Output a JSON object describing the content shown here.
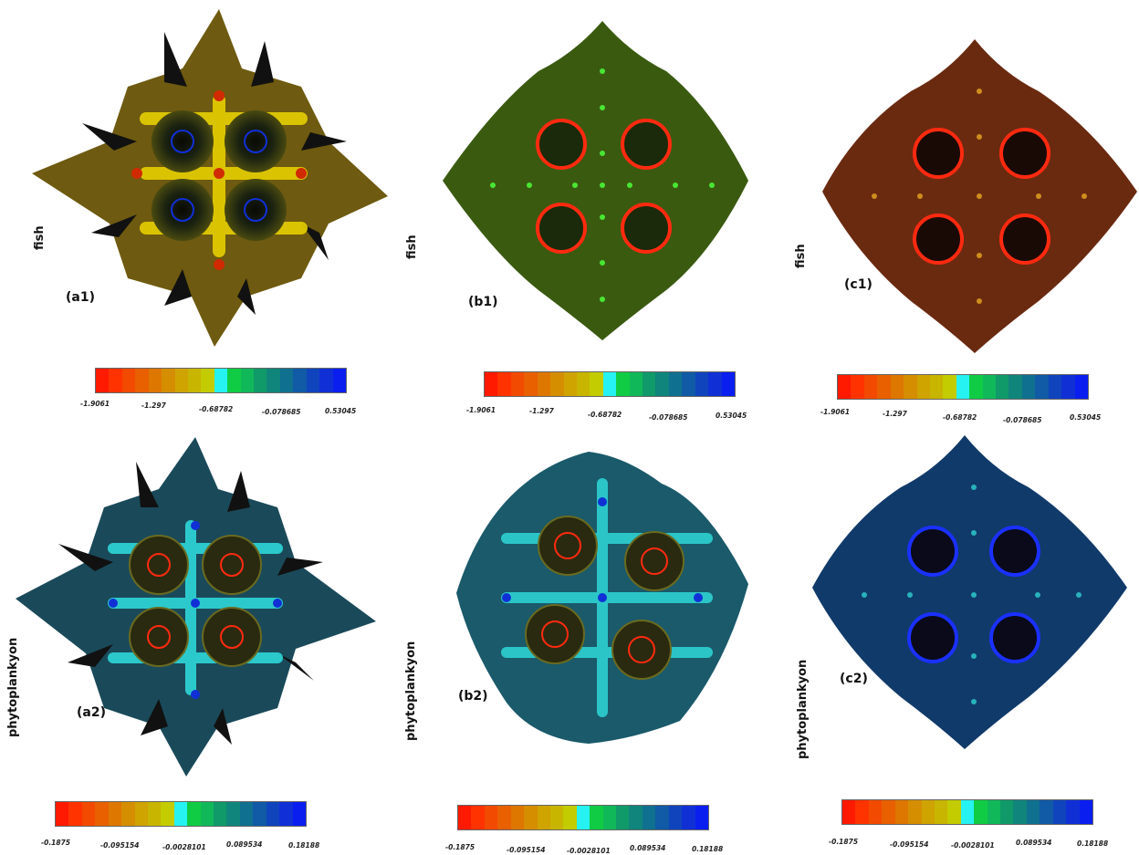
{
  "row_labels": {
    "top": "fish",
    "bottom": "phytoplankyon"
  },
  "panels": [
    {
      "id": "a1",
      "label": "(a1)",
      "row_label": "fish"
    },
    {
      "id": "b1",
      "label": "(b1)",
      "row_label": "fish"
    },
    {
      "id": "c1",
      "label": "(c1)",
      "row_label": "fish"
    },
    {
      "id": "a2",
      "label": "(a2)",
      "row_label": "phytoplankyon"
    },
    {
      "id": "b2",
      "label": "(b2)",
      "row_label": "phytoplankyon"
    },
    {
      "id": "c2",
      "label": "(c2)",
      "row_label": "phytoplankyon"
    }
  ],
  "colorbars": {
    "fish": {
      "ticks": [
        "-1.9061",
        "-1.297",
        "-0.68782",
        "-0.078685",
        "0.53045"
      ]
    },
    "phyto": {
      "ticks": [
        "-0.1875",
        "-0.095154",
        "-0.0028101",
        "0.089534",
        "0.18188"
      ]
    }
  },
  "colormap": [
    "#ff1a00",
    "#ff3300",
    "#f24a00",
    "#e86000",
    "#de7700",
    "#d48e00",
    "#cfa300",
    "#c8b500",
    "#c2cc00",
    "#26f2f2",
    "#10cc44",
    "#10b85a",
    "#109a6a",
    "#10857c",
    "#107090",
    "#105aa6",
    "#1044bd",
    "#1030d6",
    "#0a1ef0"
  ]
}
